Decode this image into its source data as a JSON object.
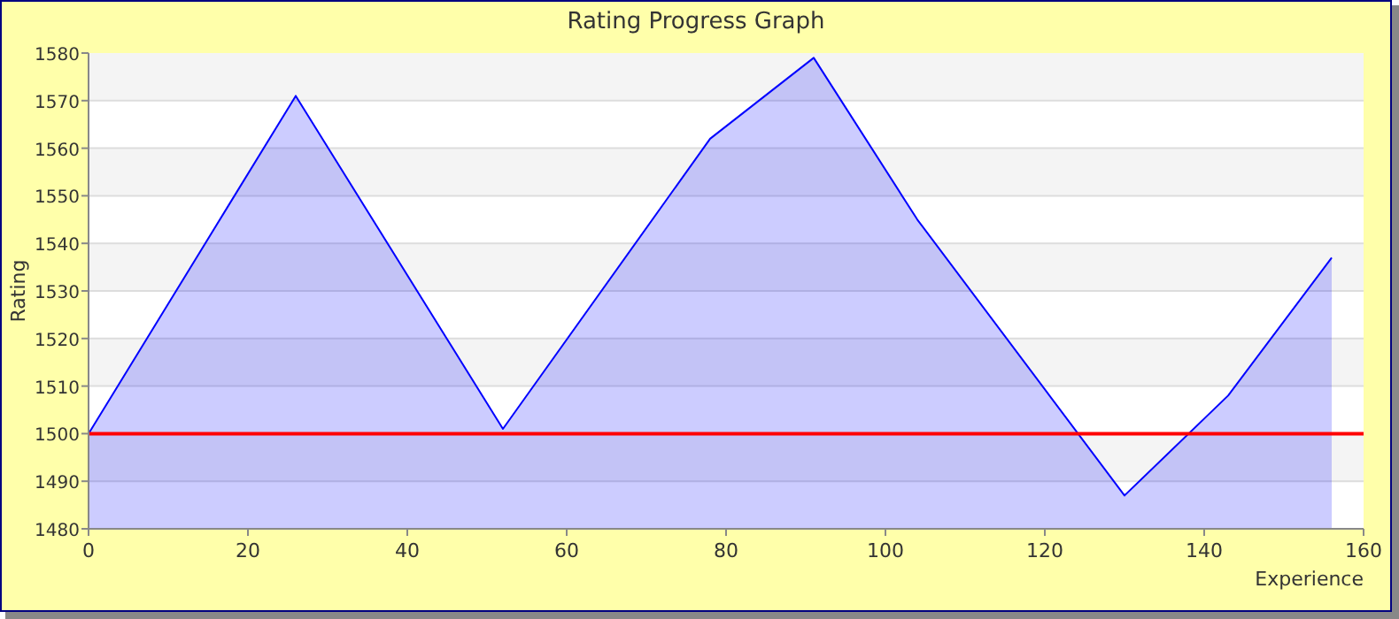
{
  "chart_data": {
    "type": "area",
    "title": "Rating Progress Graph",
    "xlabel": "Experience",
    "ylabel": "Rating",
    "x": [
      0,
      26,
      52,
      78,
      91,
      104,
      130,
      143,
      156
    ],
    "series": [
      {
        "color": "#0000ff",
        "values": [
          1500,
          1571,
          1501,
          1562,
          1579,
          1545,
          1487,
          1508,
          1537
        ]
      }
    ],
    "xlim": [
      0,
      160
    ],
    "xticks": [
      0,
      20,
      40,
      60,
      80,
      100,
      120,
      140,
      160
    ],
    "ylim": [
      1480,
      1580
    ],
    "yticks": [
      1480,
      1490,
      1500,
      1510,
      1520,
      1530,
      1540,
      1550,
      1560,
      1570,
      1580
    ],
    "grid": "y",
    "ref_lines": [
      {
        "axis": "y",
        "value": 1500,
        "color": "#ff0000"
      }
    ]
  }
}
